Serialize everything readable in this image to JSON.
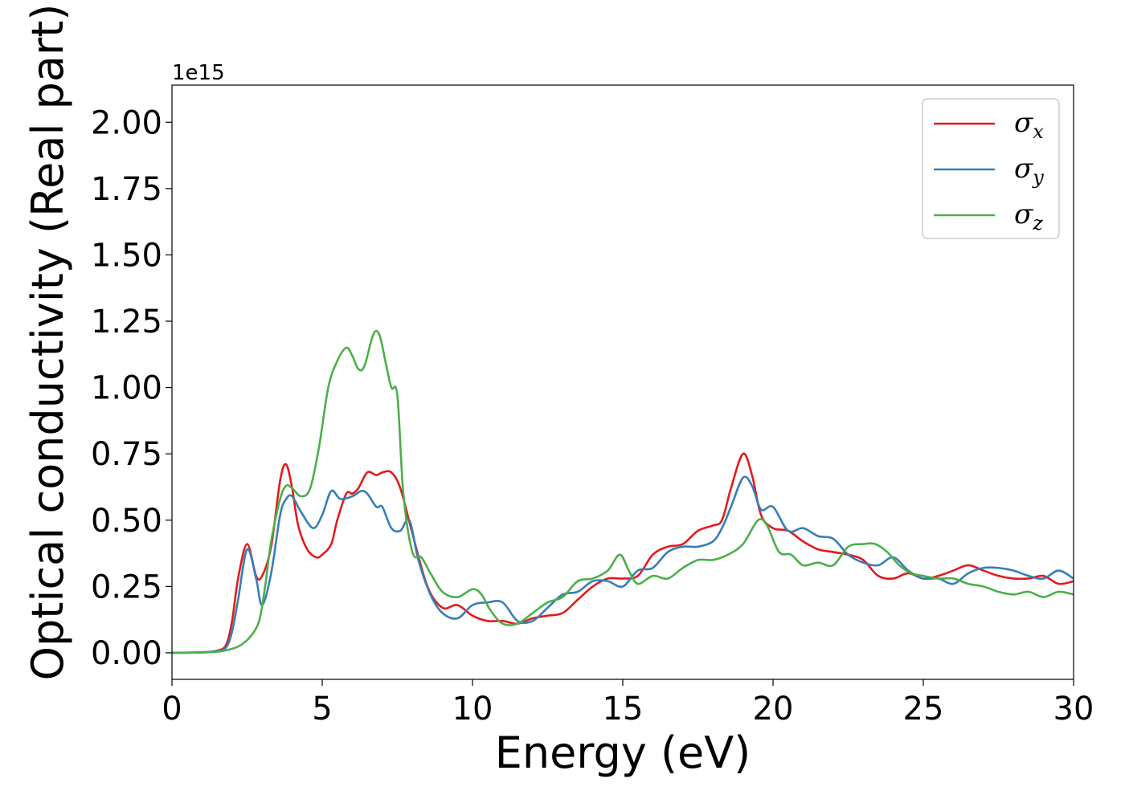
{
  "chart_data": {
    "type": "line",
    "title": "",
    "xlabel": "Energy (eV)",
    "ylabel": "Optical conductivity (Real part)",
    "y_offset_text": "1e15",
    "xlim": [
      0,
      30
    ],
    "ylim": [
      -0.1,
      2.14
    ],
    "xticks": [
      0,
      5,
      10,
      15,
      20,
      25,
      30
    ],
    "xtick_labels": [
      "0",
      "5",
      "10",
      "15",
      "20",
      "25",
      "30"
    ],
    "yticks": [
      0.0,
      0.25,
      0.5,
      0.75,
      1.0,
      1.25,
      1.5,
      1.75,
      2.0
    ],
    "ytick_labels": [
      "0.00",
      "0.25",
      "0.50",
      "0.75",
      "1.00",
      "1.25",
      "1.50",
      "1.75",
      "2.00"
    ],
    "grid": false,
    "legend_position": "top-right",
    "series": [
      {
        "name": "σx",
        "symbol": "σ",
        "subscript": "x",
        "color": "#e41a1c",
        "x": [
          0,
          1,
          1.5,
          1.8,
          2.0,
          2.2,
          2.5,
          2.8,
          3.0,
          3.3,
          3.6,
          3.8,
          4.0,
          4.2,
          4.5,
          4.8,
          5.0,
          5.3,
          5.5,
          5.8,
          6.0,
          6.2,
          6.5,
          6.8,
          7.0,
          7.3,
          7.6,
          8.0,
          8.5,
          9.0,
          9.5,
          10.0,
          10.5,
          11.0,
          11.5,
          12.0,
          12.5,
          13.0,
          13.5,
          14.0,
          14.5,
          15.0,
          15.5,
          16.0,
          16.5,
          17.0,
          17.5,
          18.0,
          18.3,
          18.6,
          19.0,
          19.3,
          19.6,
          20.0,
          20.5,
          21.0,
          21.5,
          22.0,
          22.5,
          23.0,
          23.5,
          24.0,
          24.5,
          25.0,
          25.5,
          26.0,
          26.5,
          27.0,
          27.5,
          28.0,
          28.5,
          29.0,
          29.5,
          30.0
        ],
        "y": [
          0.0,
          0.002,
          0.008,
          0.03,
          0.12,
          0.28,
          0.41,
          0.29,
          0.29,
          0.4,
          0.65,
          0.71,
          0.62,
          0.48,
          0.39,
          0.36,
          0.37,
          0.41,
          0.5,
          0.6,
          0.6,
          0.62,
          0.68,
          0.67,
          0.68,
          0.68,
          0.62,
          0.45,
          0.25,
          0.17,
          0.18,
          0.14,
          0.12,
          0.12,
          0.11,
          0.13,
          0.14,
          0.15,
          0.2,
          0.25,
          0.28,
          0.28,
          0.29,
          0.37,
          0.4,
          0.41,
          0.46,
          0.48,
          0.5,
          0.62,
          0.75,
          0.67,
          0.52,
          0.47,
          0.46,
          0.42,
          0.39,
          0.38,
          0.37,
          0.35,
          0.29,
          0.28,
          0.3,
          0.28,
          0.29,
          0.31,
          0.33,
          0.31,
          0.29,
          0.28,
          0.28,
          0.29,
          0.26,
          0.27
        ]
      },
      {
        "name": "σy",
        "symbol": "σ",
        "subscript": "y",
        "color": "#377eb8",
        "x": [
          0,
          1,
          1.5,
          1.8,
          2.0,
          2.2,
          2.5,
          2.8,
          3.0,
          3.3,
          3.6,
          3.8,
          4.0,
          4.3,
          4.7,
          5.0,
          5.3,
          5.6,
          6.0,
          6.3,
          6.5,
          6.8,
          7.0,
          7.3,
          7.6,
          7.9,
          8.2,
          8.6,
          9.0,
          9.5,
          10.0,
          10.5,
          11.0,
          11.5,
          12.0,
          12.5,
          13.0,
          13.5,
          14.0,
          14.5,
          15.0,
          15.5,
          16.0,
          16.5,
          17.0,
          17.5,
          18.0,
          18.3,
          18.6,
          19.0,
          19.3,
          19.6,
          20.0,
          20.5,
          21.0,
          21.5,
          22.0,
          22.5,
          23.0,
          23.5,
          24.0,
          24.5,
          25.0,
          25.5,
          26.0,
          26.5,
          27.0,
          27.5,
          28.0,
          28.5,
          29.0,
          29.5,
          30.0
        ],
        "y": [
          0.0,
          0.002,
          0.007,
          0.02,
          0.08,
          0.2,
          0.39,
          0.28,
          0.18,
          0.3,
          0.52,
          0.58,
          0.59,
          0.53,
          0.47,
          0.52,
          0.61,
          0.58,
          0.59,
          0.61,
          0.6,
          0.55,
          0.55,
          0.47,
          0.46,
          0.5,
          0.35,
          0.22,
          0.15,
          0.13,
          0.18,
          0.19,
          0.19,
          0.12,
          0.12,
          0.17,
          0.22,
          0.23,
          0.27,
          0.27,
          0.25,
          0.31,
          0.32,
          0.38,
          0.4,
          0.4,
          0.42,
          0.47,
          0.55,
          0.66,
          0.63,
          0.54,
          0.55,
          0.46,
          0.47,
          0.44,
          0.43,
          0.37,
          0.34,
          0.33,
          0.36,
          0.31,
          0.28,
          0.28,
          0.26,
          0.3,
          0.32,
          0.32,
          0.31,
          0.29,
          0.28,
          0.31,
          0.28
        ]
      },
      {
        "name": "σz",
        "symbol": "σ",
        "subscript": "z",
        "color": "#4daf4a",
        "x": [
          0,
          1,
          1.5,
          2.0,
          2.3,
          2.6,
          2.9,
          3.1,
          3.3,
          3.6,
          3.8,
          4.0,
          4.3,
          4.6,
          4.9,
          5.2,
          5.5,
          5.8,
          6.0,
          6.2,
          6.4,
          6.7,
          6.9,
          7.1,
          7.3,
          7.5,
          7.7,
          8.0,
          8.3,
          8.6,
          9.0,
          9.5,
          10.0,
          10.3,
          10.6,
          11.0,
          11.5,
          12.0,
          12.5,
          13.0,
          13.5,
          14.0,
          14.5,
          14.9,
          15.2,
          15.5,
          16.0,
          16.5,
          17.0,
          17.5,
          18.0,
          18.5,
          19.0,
          19.5,
          19.8,
          20.2,
          20.6,
          21.0,
          21.5,
          22.0,
          22.5,
          23.0,
          23.4,
          23.8,
          24.2,
          24.6,
          25.0,
          25.5,
          26.0,
          26.5,
          27.0,
          27.5,
          28.0,
          28.5,
          29.0,
          29.5,
          30.0
        ],
        "y": [
          0.0,
          0.001,
          0.004,
          0.015,
          0.03,
          0.06,
          0.12,
          0.25,
          0.42,
          0.58,
          0.63,
          0.62,
          0.59,
          0.62,
          0.78,
          1.0,
          1.1,
          1.15,
          1.12,
          1.07,
          1.08,
          1.2,
          1.2,
          1.1,
          1.0,
          0.97,
          0.6,
          0.38,
          0.36,
          0.3,
          0.23,
          0.21,
          0.24,
          0.22,
          0.16,
          0.11,
          0.11,
          0.15,
          0.19,
          0.21,
          0.27,
          0.28,
          0.31,
          0.37,
          0.31,
          0.26,
          0.29,
          0.28,
          0.32,
          0.35,
          0.35,
          0.37,
          0.41,
          0.5,
          0.48,
          0.38,
          0.37,
          0.33,
          0.34,
          0.33,
          0.4,
          0.41,
          0.41,
          0.38,
          0.33,
          0.3,
          0.29,
          0.28,
          0.28,
          0.26,
          0.25,
          0.23,
          0.22,
          0.23,
          0.21,
          0.23,
          0.22
        ]
      }
    ]
  }
}
